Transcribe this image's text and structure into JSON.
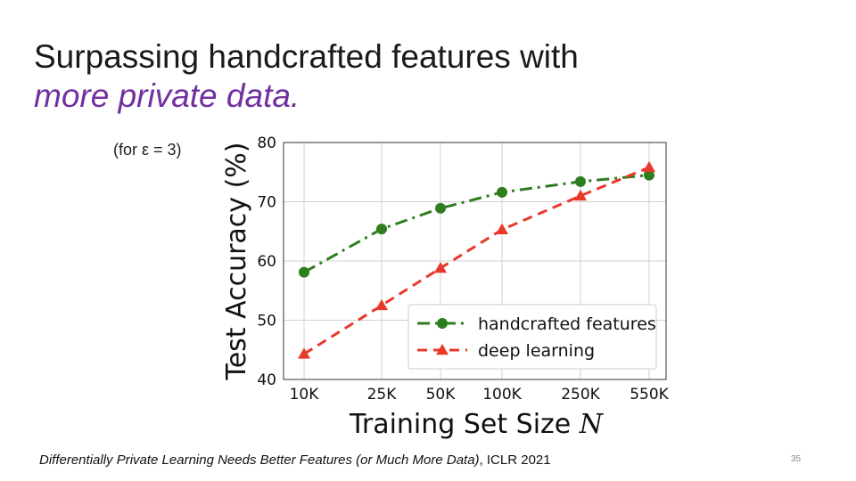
{
  "slide": {
    "title_line1": "Surpassing handcrafted features with",
    "title_line2": "more private data.",
    "condition": "(for ε = 3)",
    "citation_title": "Differentially Private Learning Needs Better Features (or Much More Data)",
    "citation_venue": ", ICLR 2021",
    "page_number": "35"
  },
  "chart_data": {
    "type": "line",
    "categories": [
      "10K",
      "25K",
      "50K",
      "100K",
      "250K",
      "550K"
    ],
    "series": [
      {
        "name": "handcrafted features",
        "values": [
          58.1,
          65.4,
          68.9,
          71.6,
          73.4,
          74.5
        ],
        "color": "#2e7d1f",
        "marker": "circle",
        "line_style": "dash-dot"
      },
      {
        "name": "deep learning",
        "values": [
          44.3,
          52.5,
          58.8,
          65.3,
          71.0,
          75.8
        ],
        "color": "#e8392a",
        "marker": "triangle",
        "line_style": "dashed"
      }
    ],
    "xlabel": "Training Set Size",
    "xlabel_var": "N",
    "ylabel": "Test Accuracy (%)",
    "ylim": [
      40,
      80
    ],
    "yticks": [
      "40",
      "50",
      "60",
      "70",
      "80"
    ],
    "grid": true,
    "legend_position": "bottom-right"
  }
}
